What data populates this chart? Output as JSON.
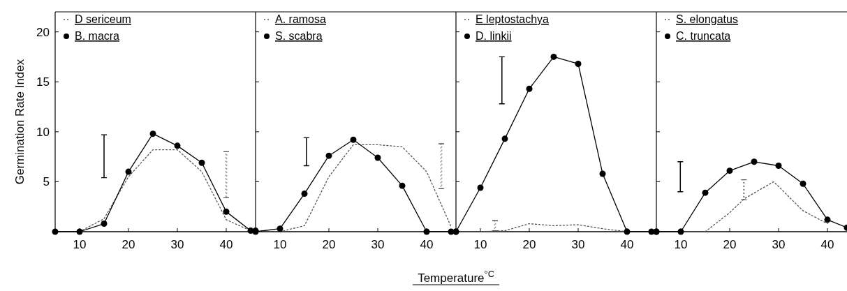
{
  "chart_data": [
    {
      "type": "line",
      "ylabel": "Germination Rate Index",
      "xlim": [
        5,
        46
      ],
      "ylim": [
        0,
        22
      ],
      "xticks": [
        10,
        20,
        30,
        40
      ],
      "yticks": [
        5,
        10,
        15,
        20
      ],
      "legend": "top left",
      "grid": false,
      "series": [
        {
          "name": "D sericeum",
          "color": "#555555",
          "line_style": "dotted",
          "marker": "none",
          "x": [
            10,
            15,
            20,
            25,
            30,
            35,
            40,
            45
          ],
          "values": [
            0,
            1.3,
            5.5,
            8.2,
            8.2,
            6,
            1.2,
            0.1
          ]
        },
        {
          "name": "B. macra",
          "color": "#000000",
          "line_style": "solid",
          "marker": "circle",
          "x": [
            5,
            10,
            15,
            20,
            25,
            30,
            35,
            40,
            45,
            46
          ],
          "values": [
            0,
            0,
            0.8,
            6,
            9.8,
            8.6,
            6.9,
            2,
            0.1,
            0.1
          ]
        },
        {
          "type": "bar",
          "color": "#000000",
          "line_style": "solid",
          "x": [
            15
          ],
          "base": [
            5.4
          ],
          "values": [
            4.3
          ]
        },
        {
          "type": "bar",
          "color": "#555555",
          "line_style": "dotted",
          "x": [
            40
          ],
          "base": [
            3.4
          ],
          "values": [
            4.6
          ]
        }
      ]
    },
    {
      "type": "line",
      "xlim": [
        5,
        46
      ],
      "ylim": [
        0,
        22
      ],
      "xticks": [
        10,
        20,
        30,
        40
      ],
      "yticks": [
        5,
        10,
        15,
        20
      ],
      "legend": "top left",
      "grid": false,
      "tick_labels": "x",
      "series": [
        {
          "name": "A. ramosa",
          "color": "#555555",
          "line_style": "dotted",
          "marker": "none",
          "x": [
            10,
            15,
            20,
            25,
            30,
            35,
            40,
            45
          ],
          "values": [
            0,
            0.6,
            5.5,
            8.7,
            8.7,
            8.5,
            6,
            0.5
          ]
        },
        {
          "name": "S. scabra",
          "color": "#000000",
          "line_style": "solid",
          "marker": "circle",
          "x": [
            5,
            10,
            15,
            20,
            25,
            30,
            35,
            40,
            45,
            46
          ],
          "values": [
            0,
            0.3,
            3.8,
            7.6,
            9.2,
            7.4,
            4.6,
            0,
            0,
            0
          ]
        },
        {
          "type": "bar",
          "color": "#000000",
          "line_style": "solid",
          "x": [
            15.4
          ],
          "base": [
            6.6
          ],
          "values": [
            2.8
          ]
        },
        {
          "type": "bar",
          "color": "#555555",
          "line_style": "dotted",
          "x": [
            43
          ],
          "base": [
            4.3
          ],
          "values": [
            4.5
          ]
        }
      ]
    },
    {
      "type": "line",
      "xlabel": "Temperature$^{°C}$",
      "xlim": [
        5,
        46
      ],
      "ylim": [
        0,
        22
      ],
      "xticks": [
        10,
        20,
        30,
        40
      ],
      "yticks": [
        5,
        10,
        15,
        20
      ],
      "legend": "top left",
      "grid": false,
      "tick_labels": "x",
      "series": [
        {
          "name": "E leptostachya",
          "color": "#555555",
          "line_style": "dotted",
          "marker": "none",
          "x": [
            10,
            15,
            20,
            25,
            30,
            35,
            40
          ],
          "values": [
            0,
            0.1,
            0.8,
            0.6,
            0.7,
            0.3,
            0
          ]
        },
        {
          "name": "D. linkii",
          "color": "#000000",
          "line_style": "solid",
          "marker": "circle",
          "x": [
            5,
            10,
            15,
            20,
            25,
            30,
            35,
            40,
            45,
            46
          ],
          "values": [
            0,
            4.4,
            9.3,
            14.3,
            17.5,
            16.8,
            5.8,
            0,
            0,
            0
          ]
        },
        {
          "type": "bar",
          "color": "#000000",
          "line_style": "solid",
          "x": [
            14.4
          ],
          "base": [
            12.8
          ],
          "values": [
            4.7
          ]
        },
        {
          "type": "bar",
          "color": "#555555",
          "line_style": "dotted",
          "x": [
            13
          ],
          "base": [
            0.1
          ],
          "values": [
            1
          ]
        }
      ]
    },
    {
      "type": "line",
      "xlim": [
        5,
        44
      ],
      "ylim": [
        0,
        22
      ],
      "xticks": [
        10,
        20,
        30,
        40
      ],
      "yticks": [
        5,
        10,
        15,
        20
      ],
      "legend": "top left",
      "grid": false,
      "tick_labels": "x",
      "series": [
        {
          "name": "S. elongatus",
          "color": "#555555",
          "line_style": "dotted",
          "marker": "none",
          "x": [
            15,
            20,
            23,
            29,
            35,
            40
          ],
          "values": [
            0,
            1.9,
            3.3,
            5,
            2.1,
            0.8
          ]
        },
        {
          "name": "C. truncata",
          "color": "#000000",
          "line_style": "solid",
          "marker": "circle",
          "x": [
            5,
            10,
            15,
            20,
            25,
            30,
            35,
            40,
            44
          ],
          "values": [
            0,
            0,
            3.9,
            6.1,
            7,
            6.6,
            4.8,
            1.2,
            0.4
          ]
        },
        {
          "type": "bar",
          "color": "#000000",
          "line_style": "solid",
          "x": [
            9.9
          ],
          "base": [
            4
          ],
          "values": [
            3
          ]
        },
        {
          "type": "bar",
          "color": "#555555",
          "line_style": "dotted",
          "x": [
            22.9
          ],
          "base": [
            3.2
          ],
          "values": [
            2
          ]
        }
      ]
    }
  ]
}
